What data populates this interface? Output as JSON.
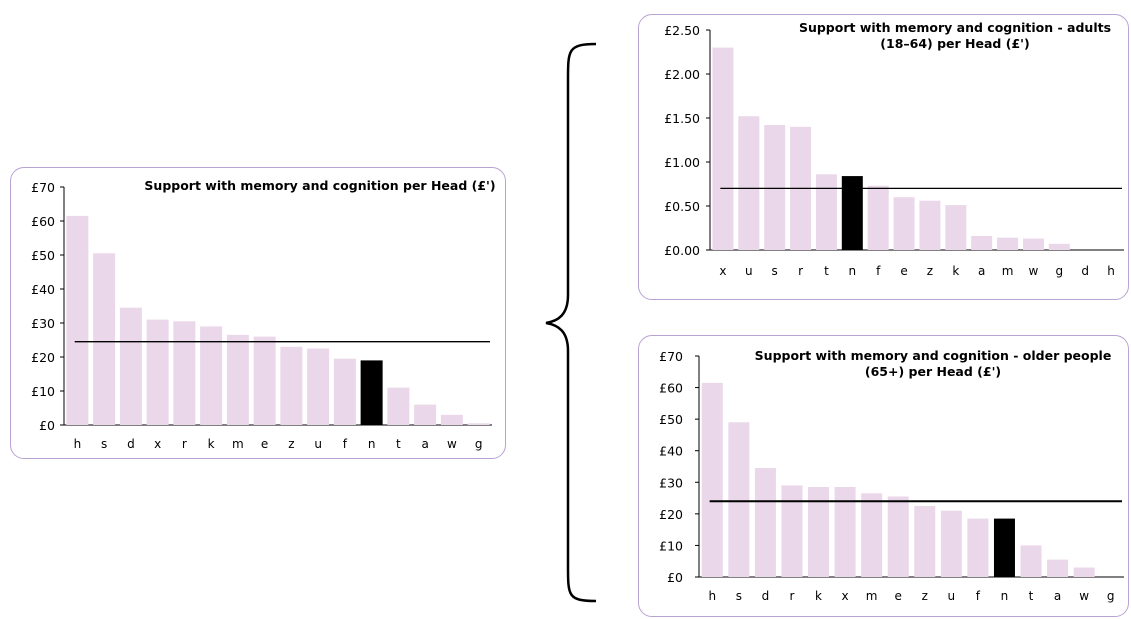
{
  "chart_data": [
    {
      "type": "bar",
      "title": "Support with memory and cognition per Head (£')",
      "categories": [
        "h",
        "s",
        "d",
        "x",
        "r",
        "k",
        "m",
        "e",
        "z",
        "u",
        "f",
        "n",
        "t",
        "a",
        "w",
        "g"
      ],
      "values": [
        61.5,
        50.5,
        34.5,
        31,
        30.5,
        29,
        26.5,
        26,
        23,
        22.5,
        19.5,
        19,
        11,
        6,
        3,
        0.5
      ],
      "highlight_index": 11,
      "reference_line": 24.5,
      "yticks": [
        "£0",
        "£10",
        "£20",
        "£30",
        "£40",
        "£50",
        "£60",
        "£70"
      ],
      "ylim": [
        0,
        70
      ],
      "colors": {
        "bar": "#ead7ea",
        "highlight": "#000000",
        "first_label": "#2e8b2e"
      }
    },
    {
      "type": "bar",
      "title": "Support with memory and cognition - adults (18–64) per Head (£')",
      "categories": [
        "x",
        "u",
        "s",
        "r",
        "t",
        "n",
        "f",
        "e",
        "z",
        "k",
        "a",
        "m",
        "w",
        "g",
        "d",
        "h"
      ],
      "values": [
        2.3,
        1.52,
        1.42,
        1.4,
        0.86,
        0.84,
        0.73,
        0.6,
        0.56,
        0.51,
        0.16,
        0.14,
        0.13,
        0.07,
        0,
        0
      ],
      "highlight_index": 5,
      "reference_line": 0.7,
      "yticks": [
        "£0.00",
        "£0.50",
        "£1.00",
        "£1.50",
        "£2.00",
        "£2.50"
      ],
      "ylim": [
        0,
        2.5
      ],
      "colors": {
        "bar": "#ead7ea",
        "highlight": "#000000",
        "first_label": "#2e8b2e"
      }
    },
    {
      "type": "bar",
      "title": "Support with memory and cognition - older people (65+) per Head (£')",
      "categories": [
        "h",
        "s",
        "d",
        "r",
        "k",
        "x",
        "m",
        "e",
        "z",
        "u",
        "f",
        "n",
        "t",
        "a",
        "w",
        "g"
      ],
      "values": [
        61.5,
        49,
        34.5,
        29,
        28.5,
        28.5,
        26.5,
        25.5,
        22.5,
        21,
        18.5,
        18.5,
        10,
        5.5,
        3,
        0
      ],
      "highlight_index": 11,
      "reference_line": 24,
      "yticks": [
        "£0",
        "£10",
        "£20",
        "£30",
        "£40",
        "£50",
        "£60",
        "£70"
      ],
      "ylim": [
        0,
        70
      ],
      "colors": {
        "bar": "#ead7ea",
        "highlight": "#000000",
        "first_label": "#2e8b2e"
      }
    }
  ]
}
